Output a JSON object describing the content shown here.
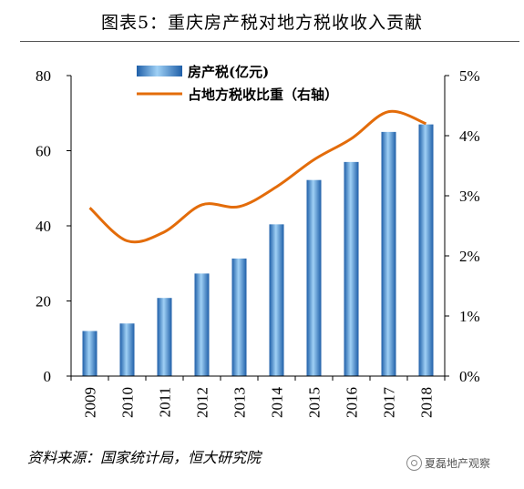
{
  "title": "图表5：重庆房产税对地方税收收入贡献",
  "source": "资料来源：国家统计局，恒大研究院",
  "watermark": "夏磊地产观察",
  "chart_data": {
    "type": "bar+line",
    "categories": [
      "2009",
      "2010",
      "2011",
      "2012",
      "2013",
      "2014",
      "2015",
      "2016",
      "2017",
      "2018"
    ],
    "series": [
      {
        "name": "房产税(亿元)",
        "type": "bar",
        "axis": "left",
        "color": "#3a8ad0",
        "values": [
          12,
          14,
          20.8,
          27.3,
          31.3,
          40.4,
          52.2,
          57,
          65,
          67
        ]
      },
      {
        "name": "占地方税收比重（右轴）",
        "type": "line",
        "axis": "right",
        "color": "#e36c0a",
        "values": [
          2.8,
          2.25,
          2.4,
          2.85,
          2.82,
          3.15,
          3.6,
          3.95,
          4.4,
          4.2
        ]
      }
    ],
    "yleft": {
      "lim": [
        0,
        80
      ],
      "ticks": [
        "0",
        "20",
        "40",
        "60",
        "80"
      ]
    },
    "yright": {
      "lim": [
        0,
        5
      ],
      "ticks": [
        "0%",
        "1%",
        "2%",
        "3%",
        "4%",
        "5%"
      ]
    },
    "legend": "top-center",
    "grid": false
  }
}
